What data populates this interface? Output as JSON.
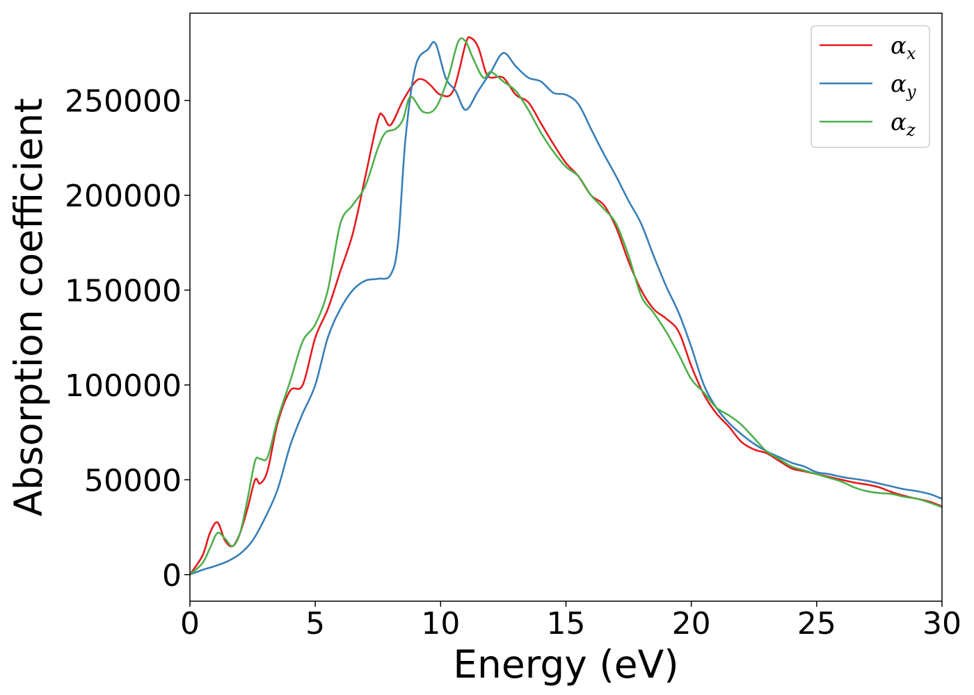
{
  "chart_data": {
    "type": "line",
    "title": "",
    "xlabel": "Energy (eV)",
    "ylabel": "Absorption coefficient",
    "xlim": [
      0,
      30
    ],
    "ylim": [
      -14000,
      296000
    ],
    "xticks": [
      0,
      5,
      10,
      15,
      20,
      25,
      30
    ],
    "yticks": [
      0,
      50000,
      100000,
      150000,
      200000,
      250000
    ],
    "xtick_labels": [
      "0",
      "5",
      "10",
      "15",
      "20",
      "25",
      "30"
    ],
    "ytick_labels": [
      "0",
      "50000",
      "100000",
      "150000",
      "200000",
      "250000"
    ],
    "grid": false,
    "legend_position": "top-right",
    "series": [
      {
        "name": "αx",
        "symbol": "α",
        "subscript": "x",
        "color": "#e41a1c",
        "x": [
          0,
          0.5,
          0.8,
          1.1,
          1.4,
          1.7,
          2.0,
          2.3,
          2.6,
          2.8,
          3.1,
          3.5,
          4.0,
          4.5,
          5.0,
          5.5,
          6.0,
          6.5,
          7.0,
          7.5,
          7.7,
          8.0,
          8.5,
          9.0,
          9.3,
          9.6,
          10.0,
          10.5,
          11.0,
          11.2,
          11.5,
          11.8,
          12.0,
          12.5,
          13.0,
          13.5,
          14.0,
          14.5,
          15.0,
          15.5,
          16.0,
          16.5,
          17.0,
          17.5,
          18.0,
          18.5,
          19.0,
          19.5,
          20.0,
          20.5,
          21.0,
          21.5,
          22.0,
          22.5,
          23.0,
          23.5,
          24.0,
          24.5,
          25.0,
          25.5,
          26.0,
          26.5,
          27.0,
          27.5,
          28.0,
          28.5,
          29.0,
          29.5,
          30.0
        ],
        "y": [
          0,
          10000,
          22000,
          27500,
          18000,
          15000,
          22000,
          35000,
          50000,
          48000,
          55000,
          80000,
          97000,
          100000,
          125000,
          140000,
          160000,
          180000,
          210000,
          240000,
          242000,
          237000,
          250000,
          260000,
          261000,
          258000,
          253000,
          255000,
          280000,
          283000,
          278000,
          265000,
          262000,
          262000,
          253000,
          249000,
          238000,
          227000,
          217000,
          210000,
          200000,
          195000,
          183000,
          165000,
          150000,
          140000,
          135000,
          128000,
          110000,
          95000,
          85000,
          78000,
          70000,
          66000,
          64000,
          60000,
          56000,
          54500,
          53000,
          51500,
          50000,
          48500,
          47500,
          46000,
          43500,
          41500,
          40000,
          38500,
          36000
        ]
      },
      {
        "name": "αy",
        "symbol": "α",
        "subscript": "y",
        "color": "#377eb8",
        "x": [
          0,
          0.5,
          1.0,
          1.5,
          2.0,
          2.5,
          3.0,
          3.5,
          4.0,
          4.5,
          5.0,
          5.5,
          6.0,
          6.5,
          7.0,
          7.5,
          8.0,
          8.3,
          8.6,
          9.0,
          9.5,
          9.8,
          10.2,
          10.6,
          11.0,
          11.5,
          12.0,
          12.5,
          13.0,
          13.5,
          14.0,
          14.5,
          15.0,
          15.5,
          16.0,
          16.5,
          17.0,
          17.5,
          18.0,
          18.5,
          19.0,
          19.5,
          20.0,
          20.5,
          21.0,
          21.5,
          22.0,
          22.5,
          23.0,
          23.5,
          24.0,
          24.5,
          25.0,
          25.5,
          26.0,
          26.5,
          27.0,
          27.5,
          28.0,
          28.5,
          29.0,
          29.5,
          30.0
        ],
        "y": [
          0,
          2500,
          4500,
          7000,
          11000,
          18000,
          30000,
          45000,
          68000,
          85000,
          100000,
          125000,
          140000,
          150000,
          155000,
          156000,
          158000,
          175000,
          230000,
          268000,
          277000,
          280000,
          262000,
          255000,
          245000,
          255000,
          265000,
          275000,
          268000,
          262000,
          260000,
          254000,
          253000,
          248000,
          235000,
          222000,
          210000,
          197000,
          185000,
          168000,
          152000,
          138000,
          120000,
          100000,
          88000,
          80000,
          74000,
          69000,
          65000,
          62000,
          59000,
          57000,
          54000,
          53000,
          51500,
          50500,
          49500,
          48000,
          46500,
          45000,
          44000,
          42500,
          40000
        ]
      },
      {
        "name": "αz",
        "symbol": "α",
        "subscript": "z",
        "color": "#4daf4a",
        "x": [
          0,
          0.5,
          0.8,
          1.1,
          1.4,
          1.7,
          2.0,
          2.3,
          2.6,
          2.8,
          3.1,
          3.5,
          4.0,
          4.5,
          5.0,
          5.5,
          6.0,
          6.5,
          7.0,
          7.5,
          7.8,
          8.2,
          8.5,
          8.8,
          9.3,
          9.8,
          10.3,
          10.7,
          11.0,
          11.3,
          11.7,
          12.0,
          12.5,
          13.0,
          13.5,
          14.0,
          14.5,
          15.0,
          15.5,
          16.0,
          16.5,
          17.0,
          17.5,
          18.0,
          18.5,
          19.0,
          19.5,
          20.0,
          20.5,
          21.0,
          21.5,
          22.0,
          22.5,
          23.0,
          23.5,
          24.0,
          24.5,
          25.0,
          25.5,
          26.0,
          26.5,
          27.0,
          27.5,
          28.0,
          28.5,
          29.0,
          29.5,
          30.0
        ],
        "y": [
          0,
          6000,
          14000,
          22000,
          19000,
          15000,
          22000,
          40000,
          60000,
          61000,
          62000,
          82000,
          102000,
          123000,
          132000,
          150000,
          185000,
          195000,
          205000,
          225000,
          233000,
          235000,
          240000,
          252000,
          244000,
          246000,
          262000,
          281000,
          281000,
          272000,
          262000,
          265000,
          260000,
          255000,
          245000,
          233000,
          223000,
          215000,
          210000,
          200000,
          193000,
          185000,
          168000,
          147000,
          138000,
          128000,
          116000,
          103000,
          96000,
          88000,
          84000,
          79000,
          72000,
          65000,
          61000,
          57000,
          55000,
          53000,
          51000,
          49000,
          46000,
          44000,
          43000,
          42500,
          41000,
          40000,
          38000,
          35500
        ]
      }
    ]
  }
}
